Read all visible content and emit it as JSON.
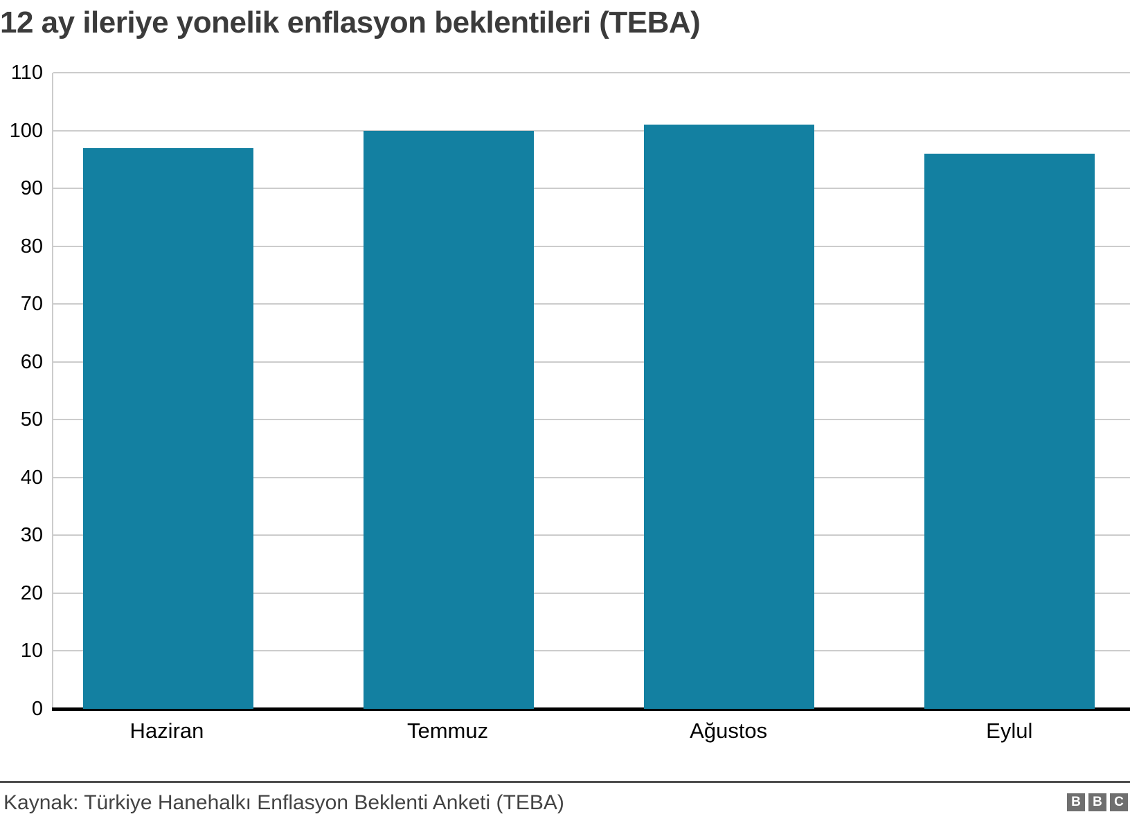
{
  "chart": {
    "title": "12 ay ileriye yonelik enflasyon beklentileri (TEBA)"
  },
  "chart_data": {
    "type": "bar",
    "categories": [
      "Haziran",
      "Temmuz",
      "Ağustos",
      "Eylul"
    ],
    "values": [
      97,
      100,
      101,
      96
    ],
    "title": "12 ay ileriye yonelik enflasyon beklentileri (TEBA)",
    "xlabel": "",
    "ylabel": "",
    "ylim": [
      0,
      110
    ],
    "yticks": [
      0,
      10,
      20,
      30,
      40,
      50,
      60,
      70,
      80,
      90,
      100,
      110
    ],
    "grid": true,
    "legend_position": "none",
    "bar_color": "#1380A1"
  },
  "footer": {
    "source": "Kaynak: Türkiye Hanehalkı Enflasyon Beklenti Anketi (TEBA)",
    "logo_letters": [
      "B",
      "B",
      "C"
    ]
  },
  "colors": {
    "bar": "#1380A1",
    "grid": "#cccccc",
    "axis_line": "#000000",
    "title_text": "#3b3b3b",
    "tick_text": "#000000",
    "footer_text": "#444444",
    "divider": "#4d4d4d",
    "logo_bg": "#6f6f6f",
    "logo_text": "#ffffff"
  }
}
